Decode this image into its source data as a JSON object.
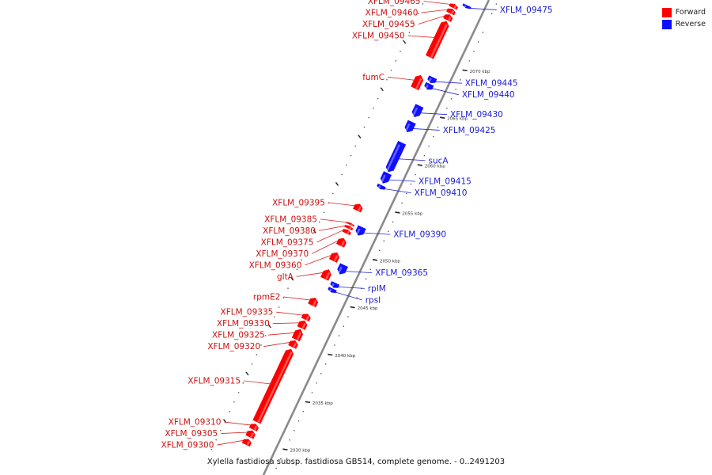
{
  "legend": {
    "forward": {
      "label": "Forward",
      "color": "#ff0000"
    },
    "reverse": {
      "label": "Reverse",
      "color": "#1010ff"
    }
  },
  "caption": "Xylella fastidiosa subsp. fastidiosa GB514, complete genome. - 0..2491203",
  "scale": {
    "unit": "kbp",
    "ticks": [
      {
        "kbp": 2030,
        "label": "2030 kbp"
      },
      {
        "kbp": 2035,
        "label": "2035 kbp"
      },
      {
        "kbp": 2040,
        "label": "2040 kbp"
      },
      {
        "kbp": 2045,
        "label": "2045 kbp"
      },
      {
        "kbp": 2050,
        "label": "2050 kbp"
      },
      {
        "kbp": 2055,
        "label": "2055 kbp"
      },
      {
        "kbp": 2060,
        "label": "2060 kbp"
      },
      {
        "kbp": 2065,
        "label": "2065 kbp"
      },
      {
        "kbp": 2070,
        "label": "2070 kbp"
      }
    ]
  },
  "genes": [
    {
      "label": "XFLM_09300",
      "strand": "forward",
      "start_kbp": 2028.8,
      "end_kbp": 2029.4
    },
    {
      "label": "XFLM_09305",
      "strand": "forward",
      "start_kbp": 2029.6,
      "end_kbp": 2030.3
    },
    {
      "label": "XFLM_09310",
      "strand": "forward",
      "start_kbp": 2030.4,
      "end_kbp": 2031.0
    },
    {
      "label": "XFLM_09315",
      "strand": "forward",
      "start_kbp": 2031.2,
      "end_kbp": 2038.9
    },
    {
      "label": "XFLM_09320",
      "strand": "forward",
      "start_kbp": 2039.1,
      "end_kbp": 2039.8
    },
    {
      "label": "XFLM_09325",
      "strand": "forward",
      "start_kbp": 2039.9,
      "end_kbp": 2041.0
    },
    {
      "label": "XFLM_09330",
      "strand": "forward",
      "start_kbp": 2041.1,
      "end_kbp": 2041.9
    },
    {
      "label": "XFLM_09335",
      "strand": "forward",
      "start_kbp": 2042.0,
      "end_kbp": 2042.6
    },
    {
      "label": "rpmE2",
      "strand": "forward",
      "start_kbp": 2043.5,
      "end_kbp": 2044.3
    },
    {
      "label": "rpsI",
      "strand": "reverse",
      "start_kbp": 2045.4,
      "end_kbp": 2045.8
    },
    {
      "label": "rplM",
      "strand": "reverse",
      "start_kbp": 2045.9,
      "end_kbp": 2046.4
    },
    {
      "label": "gltA",
      "strand": "forward",
      "start_kbp": 2046.3,
      "end_kbp": 2047.3
    },
    {
      "label": "XFLM_09365",
      "strand": "reverse",
      "start_kbp": 2047.3,
      "end_kbp": 2048.3
    },
    {
      "label": "XFLM_09360",
      "strand": "forward",
      "start_kbp": 2048.2,
      "end_kbp": 2049.1
    },
    {
      "label": "XFLM_09370",
      "strand": "forward",
      "start_kbp": 2049.8,
      "end_kbp": 2050.6
    },
    {
      "label": "XFLM_09375",
      "strand": "forward",
      "start_kbp": 2051.1,
      "end_kbp": 2051.5
    },
    {
      "label": "XFLM_09380",
      "strand": "forward",
      "start_kbp": 2051.6,
      "end_kbp": 2051.9
    },
    {
      "label": "XFLM_09385",
      "strand": "forward",
      "start_kbp": 2052.0,
      "end_kbp": 2052.2
    },
    {
      "label": "XFLM_09390",
      "strand": "reverse",
      "start_kbp": 2051.4,
      "end_kbp": 2052.3
    },
    {
      "label": "XFLM_09395",
      "strand": "forward",
      "start_kbp": 2053.5,
      "end_kbp": 2054.2
    },
    {
      "label": "XFLM_09410",
      "strand": "reverse",
      "start_kbp": 2056.3,
      "end_kbp": 2056.7
    },
    {
      "label": "XFLM_09415",
      "strand": "reverse",
      "start_kbp": 2056.9,
      "end_kbp": 2058.0
    },
    {
      "label": "sucA",
      "strand": "reverse",
      "start_kbp": 2058.1,
      "end_kbp": 2061.2
    },
    {
      "label": "XFLM_09425",
      "strand": "reverse",
      "start_kbp": 2062.3,
      "end_kbp": 2063.4
    },
    {
      "label": "XFLM_09430",
      "strand": "reverse",
      "start_kbp": 2063.9,
      "end_kbp": 2065.1
    },
    {
      "label": "XFLM_09440",
      "strand": "reverse",
      "start_kbp": 2066.8,
      "end_kbp": 2067.4
    },
    {
      "label": "XFLM_09445",
      "strand": "reverse",
      "start_kbp": 2067.5,
      "end_kbp": 2068.1
    },
    {
      "label": "fumC",
      "strand": "forward",
      "start_kbp": 2066.4,
      "end_kbp": 2067.8
    },
    {
      "label": "XFLM_09450",
      "strand": "forward",
      "start_kbp": 2069.7,
      "end_kbp": 2073.5
    },
    {
      "label": "XFLM_09455",
      "strand": "forward",
      "start_kbp": 2073.6,
      "end_kbp": 2074.2
    },
    {
      "label": "XFLM_09460",
      "strand": "forward",
      "start_kbp": 2074.3,
      "end_kbp": 2074.8
    },
    {
      "label": "XFLM_09465",
      "strand": "forward",
      "start_kbp": 2074.9,
      "end_kbp": 2075.3
    },
    {
      "label": "XFLM_09475",
      "strand": "reverse",
      "start_kbp": 2075.4,
      "end_kbp": 2075.7
    }
  ]
}
